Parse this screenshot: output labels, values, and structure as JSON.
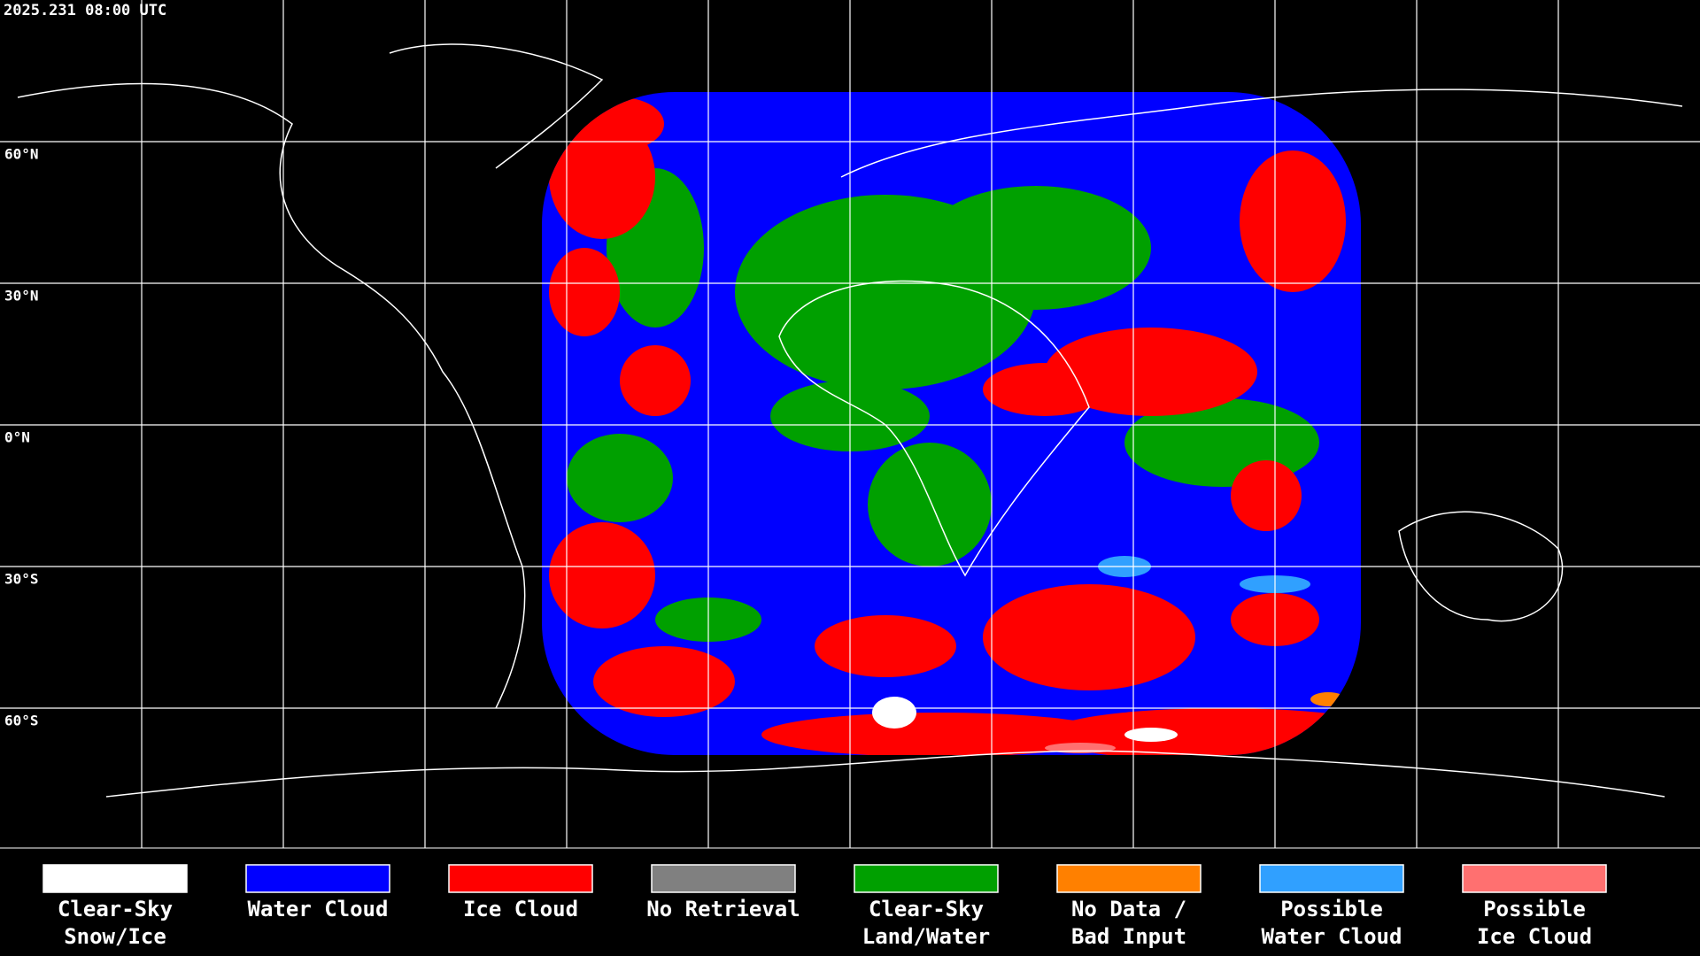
{
  "header": {
    "timestamp": "2025.231 08:00 UTC"
  },
  "latitude_labels": [
    "60°N",
    "30°N",
    "0°N",
    "30°S",
    "60°S"
  ],
  "legend": {
    "items": [
      {
        "lines": [
          "Clear-Sky",
          "Snow/Ice"
        ],
        "color": "#ffffff"
      },
      {
        "lines": [
          "Water Cloud"
        ],
        "color": "#0000ff"
      },
      {
        "lines": [
          "Ice Cloud"
        ],
        "color": "#ff0000"
      },
      {
        "lines": [
          "No Retrieval"
        ],
        "color": "#808080"
      },
      {
        "lines": [
          "Clear-Sky",
          "Land/Water"
        ],
        "color": "#00a000"
      },
      {
        "lines": [
          "No Data /",
          "Bad Input"
        ],
        "color": "#ff8000"
      },
      {
        "lines": [
          "Possible",
          "Water Cloud"
        ],
        "color": "#30a0ff"
      },
      {
        "lines": [
          "Possible",
          "Ice Cloud"
        ],
        "color": "#ff7070"
      }
    ]
  }
}
